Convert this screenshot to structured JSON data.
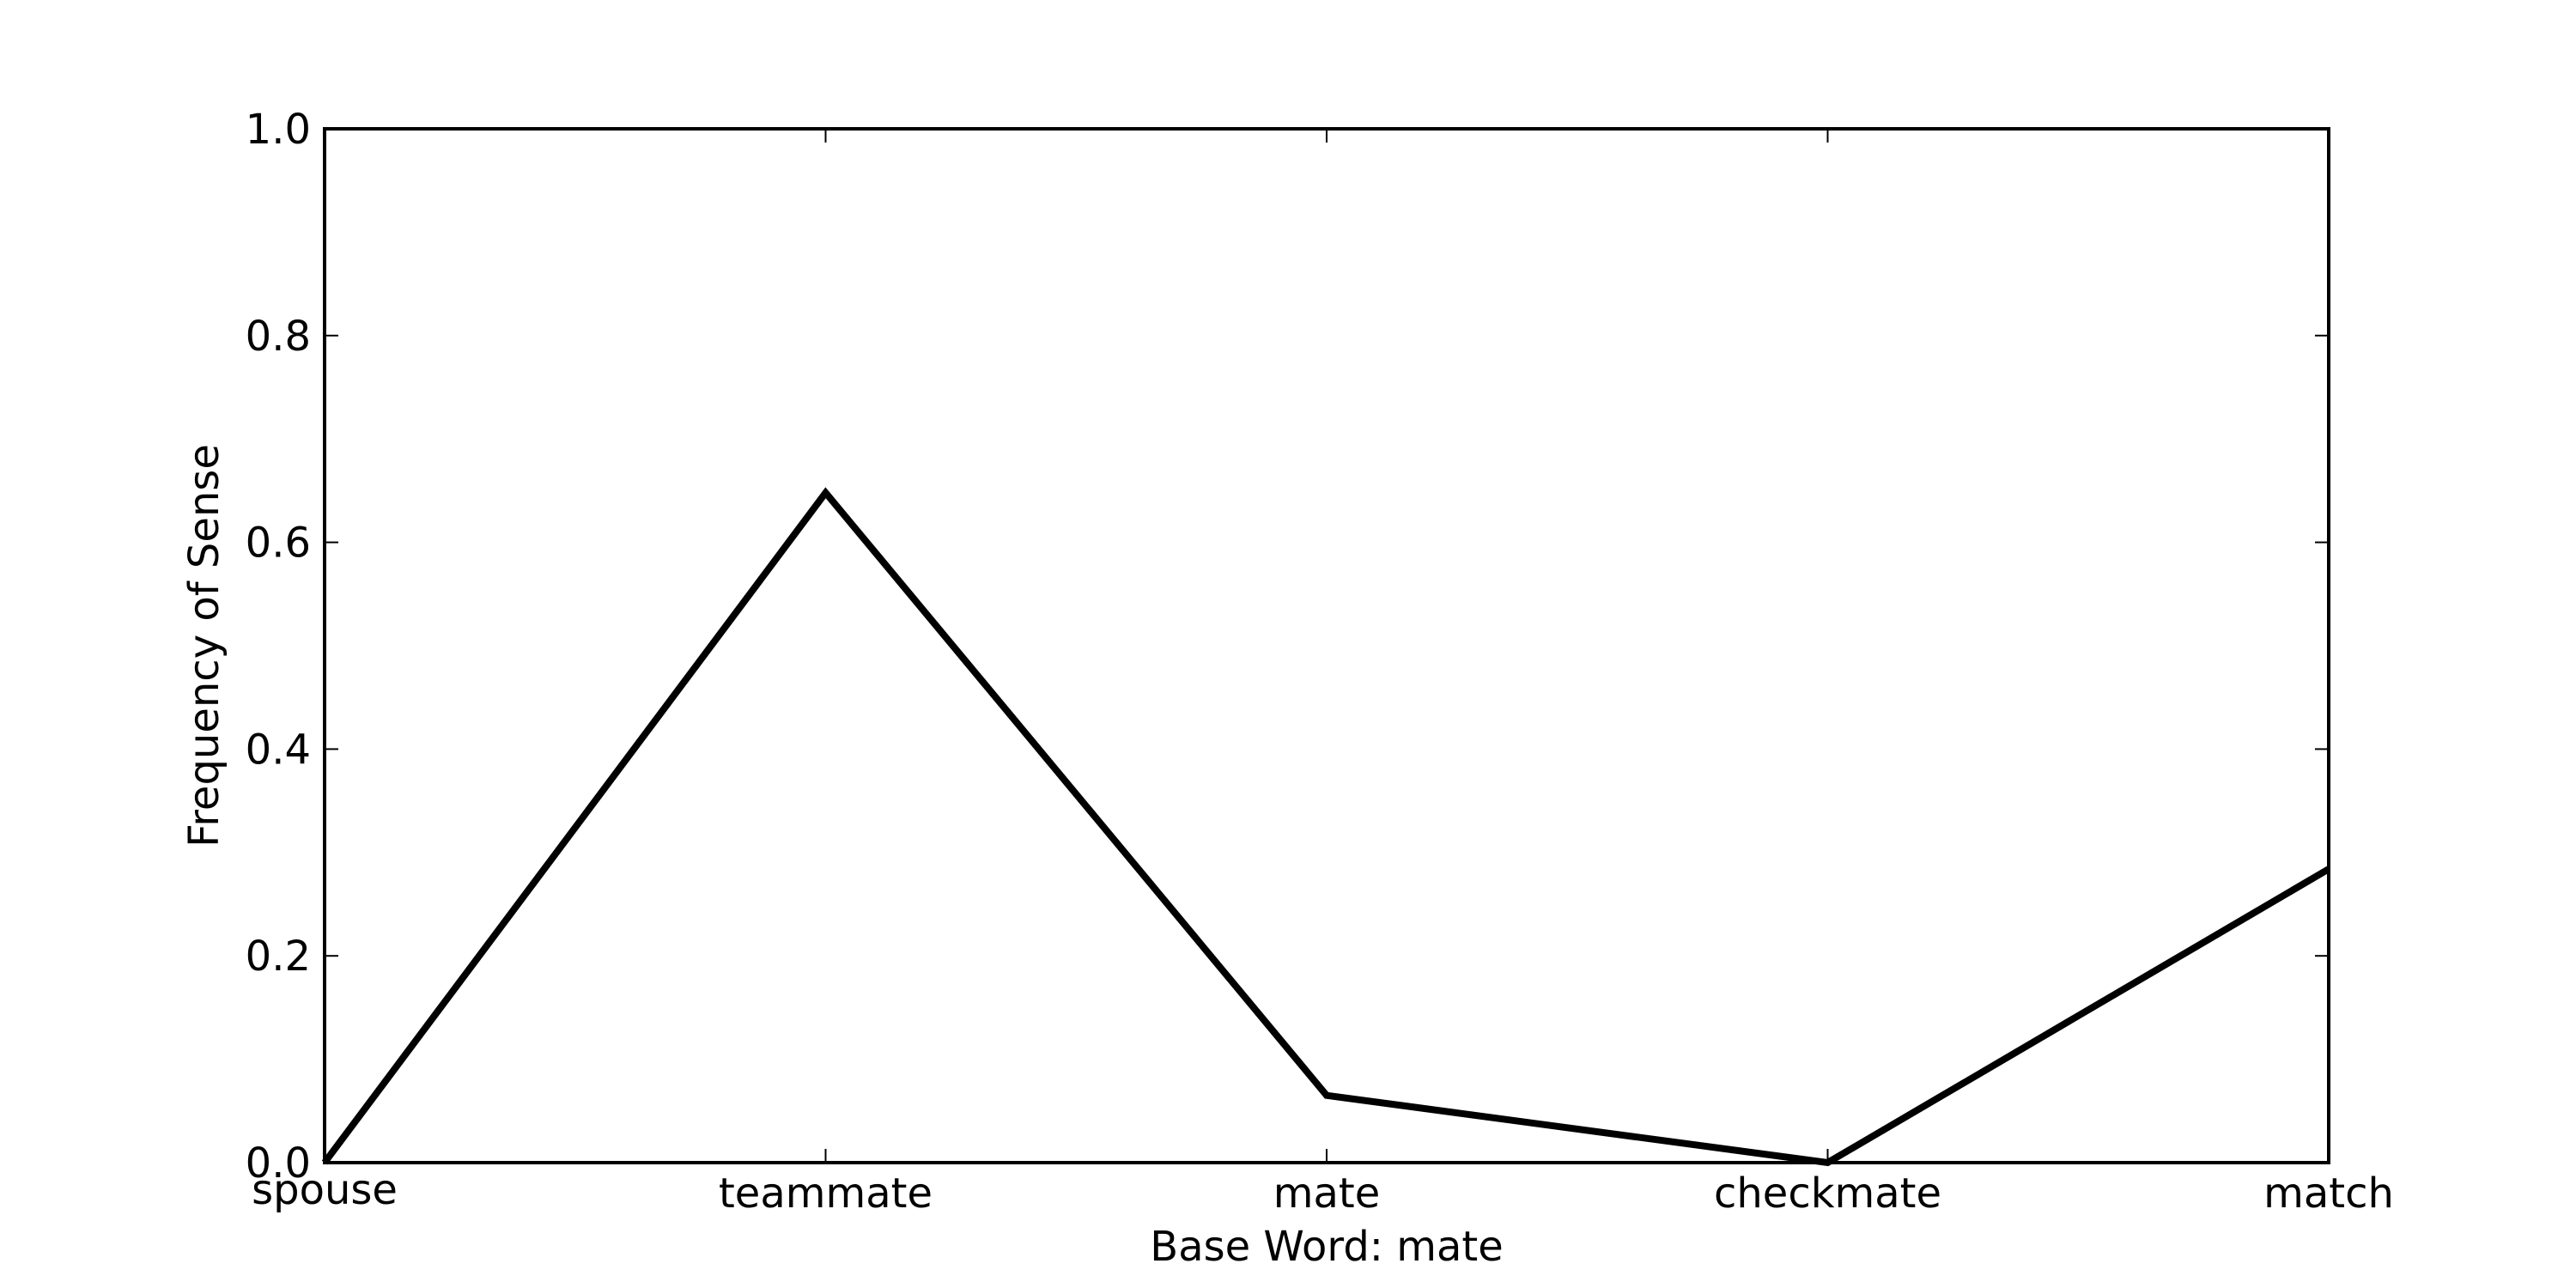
{
  "chart_data": {
    "type": "line",
    "categories": [
      "spouse",
      "teammate",
      "mate",
      "checkmate",
      "match"
    ],
    "series": [
      {
        "values": [
          0.0,
          0.648,
          0.065,
          0.0,
          0.284
        ],
        "color": "#000000"
      }
    ],
    "xlabel": "Base Word: mate",
    "ylabel": "Frequency of Sense",
    "ylim": [
      0.0,
      1.0
    ],
    "yticks": [
      "0.0",
      "0.2",
      "0.4",
      "0.6",
      "0.8",
      "1.0"
    ],
    "grid": false
  }
}
